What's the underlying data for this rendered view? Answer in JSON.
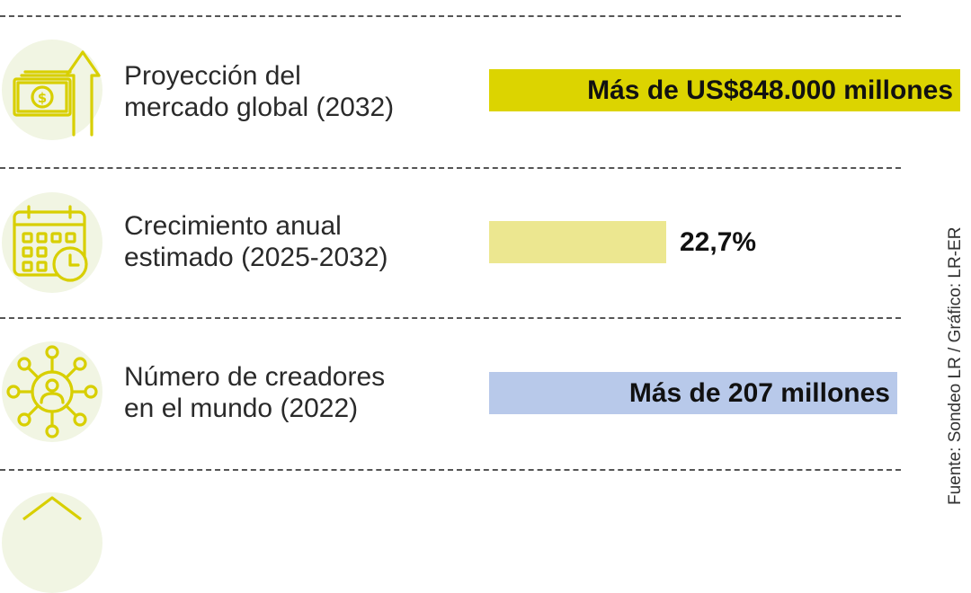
{
  "source": "Fuente: Sondeo LR / Gráfico: LR-ER",
  "chart_data": {
    "type": "bar",
    "categories": [
      "Proyección del mercado global (2032)",
      "Crecimiento anual estimado (2025-2032)",
      "Número de creadores en el mundo (2022)"
    ],
    "value_labels": [
      "Más de US$848.000 millones",
      "22,7%",
      "Más de 207 millones"
    ],
    "bar_colors": [
      "#dcd400",
      "#ece790",
      "#b8c9ea"
    ],
    "icons": [
      "money-growth-icon",
      "calendar-clock-icon",
      "creator-network-icon"
    ]
  },
  "rows": [
    {
      "label_line1": "Proyección del",
      "label_line2": "mercado global (2032)",
      "value": "Más de US$848.000 millones"
    },
    {
      "label_line1": "Crecimiento anual",
      "label_line2": "estimado (2025-2032)",
      "value": "22,7%"
    },
    {
      "label_line1": "Número de creadores",
      "label_line2": "en el mundo (2022)",
      "value": "Más de 207 millones"
    }
  ]
}
